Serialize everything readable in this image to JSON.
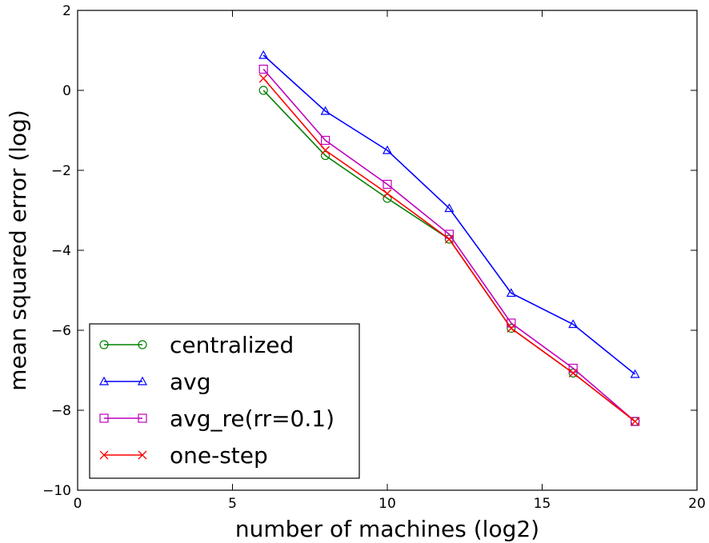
{
  "chart_data": {
    "type": "line",
    "title": "",
    "xlabel": "number of machines (log2)",
    "ylabel": "mean squared error (log)",
    "xlim": [
      0,
      20
    ],
    "ylim": [
      -10,
      2
    ],
    "xticks": [
      0,
      5,
      10,
      15,
      20
    ],
    "yticks": [
      -10,
      -8,
      -6,
      -4,
      -2,
      0,
      2
    ],
    "grid": false,
    "legend_position": "lower-left",
    "x": [
      6,
      8,
      10,
      12,
      14,
      16,
      18
    ],
    "series": [
      {
        "name": "centralized",
        "color": "#008000",
        "marker": "circle",
        "values": [
          0.0,
          -1.63,
          -2.7,
          -3.72,
          -5.95,
          -7.07,
          -8.28
        ]
      },
      {
        "name": "avg",
        "color": "#0000ff",
        "marker": "triangle",
        "values": [
          0.88,
          -0.52,
          -1.5,
          -2.95,
          -5.07,
          -5.85,
          -7.1
        ]
      },
      {
        "name": "avg_re(rr=0.1)",
        "color": "#bf00bf",
        "marker": "square",
        "values": [
          0.53,
          -1.25,
          -2.35,
          -3.6,
          -5.82,
          -6.95,
          -8.28
        ]
      },
      {
        "name": "one-step",
        "color": "#ff0000",
        "marker": "x",
        "values": [
          0.3,
          -1.5,
          -2.58,
          -3.72,
          -5.95,
          -7.07,
          -8.28
        ]
      }
    ]
  }
}
